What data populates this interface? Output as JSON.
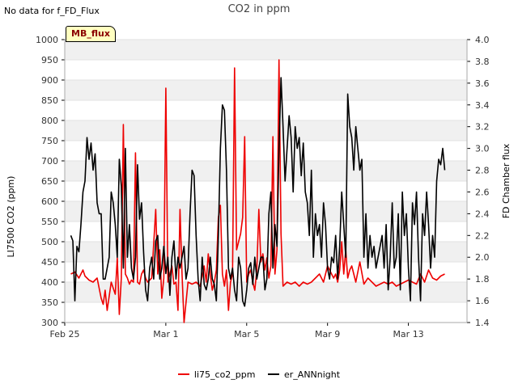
{
  "header": {
    "no_data_note": "No data for f_FD_Flux",
    "title": "CO2 in ppm",
    "badge": "MB_flux"
  },
  "chart_data": {
    "type": "line",
    "title": "CO2 in ppm",
    "xlabel": "",
    "ylabel": "LI7500 CO2 (ppm)",
    "y2label": "FD Chamber flux",
    "x_unit": "days since Feb 25",
    "xlim": [
      0,
      19.9
    ],
    "ylim": [
      300,
      1000
    ],
    "y2lim": [
      1.4,
      4.0
    ],
    "x_ticks": [
      {
        "value": 0,
        "label": "Feb 25"
      },
      {
        "value": 5,
        "label": "Mar 1"
      },
      {
        "value": 9,
        "label": "Mar 5"
      },
      {
        "value": 13,
        "label": "Mar 9"
      },
      {
        "value": 17,
        "label": "Mar 13"
      }
    ],
    "y_ticks": [
      300,
      350,
      400,
      450,
      500,
      550,
      600,
      650,
      700,
      750,
      800,
      850,
      900,
      950,
      1000
    ],
    "y2_ticks": [
      1.4,
      1.6,
      1.8,
      2.0,
      2.2,
      2.4,
      2.6,
      2.8,
      3.0,
      3.2,
      3.4,
      3.6,
      3.8,
      4.0
    ],
    "y2_tick_labels": [
      "1.4",
      "1.6",
      "1.8",
      "2.0",
      "2.2",
      "2.4",
      "2.6",
      "2.8",
      "3.0",
      "3.2",
      "3.4",
      "3.6",
      "3.8",
      "4.0"
    ],
    "legend_position": "bottom-center",
    "series": [
      {
        "name": "li75_co2_ppm",
        "color": "#ee0000",
        "axis": "left",
        "x": [
          0.3,
          0.5,
          0.7,
          0.9,
          1.0,
          1.2,
          1.4,
          1.6,
          1.8,
          1.9,
          2.0,
          2.1,
          2.3,
          2.5,
          2.6,
          2.7,
          2.8,
          2.9,
          3.0,
          3.1,
          3.2,
          3.3,
          3.4,
          3.5,
          3.6,
          3.7,
          3.8,
          3.9,
          4.0,
          4.1,
          4.3,
          4.5,
          4.6,
          4.7,
          4.8,
          4.9,
          5.0,
          5.1,
          5.2,
          5.3,
          5.4,
          5.5,
          5.6,
          5.7,
          5.8,
          5.9,
          6.1,
          6.3,
          6.5,
          6.7,
          6.9,
          7.0,
          7.1,
          7.2,
          7.3,
          7.4,
          7.5,
          7.6,
          7.7,
          7.8,
          7.9,
          8.0,
          8.1,
          8.2,
          8.3,
          8.4,
          8.5,
          8.6,
          8.7,
          8.8,
          8.9,
          9.0,
          9.1,
          9.2,
          9.3,
          9.4,
          9.5,
          9.6,
          9.7,
          9.8,
          9.9,
          10.0,
          10.1,
          10.2,
          10.3,
          10.4,
          10.5,
          10.6,
          10.7,
          10.8,
          11.0,
          11.2,
          11.4,
          11.6,
          11.8,
          12.0,
          12.2,
          12.4,
          12.6,
          12.8,
          12.9,
          13.0,
          13.1,
          13.2,
          13.3,
          13.4,
          13.5,
          13.6,
          13.7,
          13.8,
          13.9,
          14.0,
          14.1,
          14.2,
          14.3,
          14.4,
          14.6,
          14.8,
          15.0,
          15.2,
          15.4,
          15.6,
          15.8,
          16.0,
          16.2,
          16.4,
          16.6,
          16.8,
          17.0,
          17.2,
          17.4,
          17.6,
          17.8,
          18.0,
          18.2,
          18.4,
          18.6,
          18.8
        ],
        "values": [
          420,
          425,
          410,
          430,
          415,
          405,
          400,
          410,
          360,
          345,
          380,
          330,
          400,
          370,
          460,
          320,
          410,
          790,
          420,
          410,
          395,
          405,
          400,
          720,
          400,
          395,
          420,
          430,
          410,
          400,
          410,
          580,
          420,
          480,
          360,
          410,
          880,
          400,
          420,
          440,
          395,
          400,
          330,
          580,
          420,
          300,
          400,
          395,
          400,
          390,
          440,
          400,
          470,
          420,
          380,
          400,
          430,
          560,
          590,
          420,
          390,
          430,
          330,
          400,
          420,
          930,
          480,
          500,
          520,
          560,
          760,
          400,
          420,
          430,
          400,
          380,
          430,
          580,
          450,
          470,
          430,
          460,
          410,
          440,
          760,
          420,
          480,
          950,
          520,
          390,
          400,
          395,
          400,
          390,
          400,
          395,
          400,
          410,
          420,
          400,
          420,
          440,
          430,
          420,
          410,
          420,
          400,
          430,
          500,
          420,
          480,
          410,
          430,
          440,
          420,
          400,
          450,
          395,
          410,
          400,
          390,
          395,
          400,
          395,
          400,
          390,
          395,
          400,
          405,
          400,
          395,
          420,
          400,
          430,
          410,
          405,
          415,
          420
        ]
      },
      {
        "name": "er_ANNnight",
        "color": "#000000",
        "axis": "right",
        "x": [
          0.3,
          0.4,
          0.5,
          0.6,
          0.7,
          0.8,
          0.9,
          1.0,
          1.1,
          1.2,
          1.3,
          1.4,
          1.5,
          1.6,
          1.7,
          1.8,
          1.9,
          2.0,
          2.1,
          2.2,
          2.3,
          2.4,
          2.5,
          2.6,
          2.7,
          2.8,
          2.9,
          3.0,
          3.1,
          3.2,
          3.3,
          3.4,
          3.5,
          3.6,
          3.7,
          3.8,
          3.9,
          4.0,
          4.1,
          4.2,
          4.3,
          4.4,
          4.5,
          4.6,
          4.7,
          4.8,
          4.9,
          5.0,
          5.1,
          5.2,
          5.3,
          5.4,
          5.5,
          5.6,
          5.7,
          5.8,
          5.9,
          6.0,
          6.1,
          6.2,
          6.3,
          6.4,
          6.5,
          6.6,
          6.7,
          6.8,
          6.9,
          7.0,
          7.1,
          7.2,
          7.3,
          7.4,
          7.5,
          7.6,
          7.7,
          7.8,
          7.9,
          8.0,
          8.1,
          8.2,
          8.3,
          8.4,
          8.5,
          8.6,
          8.7,
          8.8,
          8.9,
          9.0,
          9.1,
          9.2,
          9.3,
          9.4,
          9.5,
          9.6,
          9.7,
          9.8,
          9.9,
          10.0,
          10.1,
          10.2,
          10.3,
          10.4,
          10.5,
          10.6,
          10.7,
          10.8,
          10.9,
          11.0,
          11.1,
          11.2,
          11.3,
          11.4,
          11.5,
          11.6,
          11.7,
          11.8,
          11.9,
          12.0,
          12.1,
          12.2,
          12.3,
          12.4,
          12.5,
          12.6,
          12.7,
          12.8,
          12.9,
          13.0,
          13.1,
          13.2,
          13.3,
          13.4,
          13.5,
          13.6,
          13.7,
          13.8,
          13.9,
          14.0,
          14.1,
          14.2,
          14.3,
          14.4,
          14.5,
          14.6,
          14.7,
          14.8,
          14.9,
          15.0,
          15.1,
          15.2,
          15.3,
          15.4,
          15.5,
          15.6,
          15.7,
          15.8,
          15.9,
          16.0,
          16.1,
          16.2,
          16.3,
          16.4,
          16.5,
          16.6,
          16.7,
          16.8,
          16.9,
          17.0,
          17.1,
          17.2,
          17.3,
          17.4,
          17.5,
          17.6,
          17.7,
          17.8,
          17.9,
          18.0,
          18.1,
          18.2,
          18.3,
          18.4,
          18.5,
          18.6,
          18.7,
          18.8
        ],
        "values": [
          2.2,
          2.15,
          1.6,
          2.1,
          2.05,
          2.3,
          2.6,
          2.7,
          3.1,
          2.9,
          3.05,
          2.8,
          2.95,
          2.5,
          2.4,
          2.4,
          1.8,
          1.8,
          1.9,
          2.0,
          2.6,
          2.5,
          2.3,
          2.0,
          2.9,
          2.65,
          1.9,
          3.0,
          2.0,
          2.3,
          1.9,
          1.8,
          2.0,
          2.85,
          2.35,
          2.5,
          2.05,
          1.7,
          1.6,
          1.9,
          2.0,
          1.8,
          2.15,
          2.2,
          1.8,
          1.9,
          2.1,
          1.85,
          2.0,
          1.65,
          2.0,
          2.15,
          1.8,
          2.0,
          1.9,
          2.0,
          2.1,
          1.8,
          1.9,
          2.4,
          2.8,
          2.75,
          2.2,
          1.8,
          1.6,
          2.0,
          1.75,
          1.7,
          1.8,
          2.0,
          1.8,
          1.75,
          1.6,
          2.2,
          3.0,
          3.4,
          3.35,
          2.8,
          1.9,
          1.8,
          1.9,
          1.7,
          1.6,
          2.0,
          1.9,
          1.6,
          1.55,
          1.7,
          1.9,
          1.95,
          1.75,
          2.0,
          1.8,
          1.9,
          2.0,
          2.0,
          1.7,
          1.8,
          2.4,
          2.6,
          1.9,
          2.3,
          2.1,
          3.0,
          3.65,
          3.2,
          2.7,
          3.0,
          3.3,
          3.1,
          2.6,
          3.2,
          3.0,
          3.1,
          2.75,
          3.05,
          2.6,
          2.5,
          2.2,
          2.8,
          2.0,
          2.4,
          2.2,
          2.3,
          2.0,
          2.5,
          2.3,
          1.9,
          1.8,
          2.0,
          1.95,
          2.2,
          1.8,
          2.1,
          2.6,
          2.3,
          2.0,
          3.5,
          3.2,
          3.1,
          2.8,
          3.2,
          3.0,
          2.8,
          2.9,
          2.0,
          2.4,
          1.9,
          2.2,
          2.0,
          2.1,
          1.9,
          2.0,
          2.1,
          2.2,
          1.9,
          2.3,
          1.7,
          2.0,
          2.5,
          1.9,
          2.0,
          2.4,
          1.7,
          2.6,
          2.2,
          2.4,
          1.9,
          1.6,
          2.5,
          2.3,
          2.6,
          2.0,
          1.6,
          2.4,
          2.2,
          2.6,
          2.3,
          1.9,
          2.2,
          2.0,
          2.7,
          2.9,
          2.85,
          3.0,
          2.8
        ]
      }
    ]
  }
}
